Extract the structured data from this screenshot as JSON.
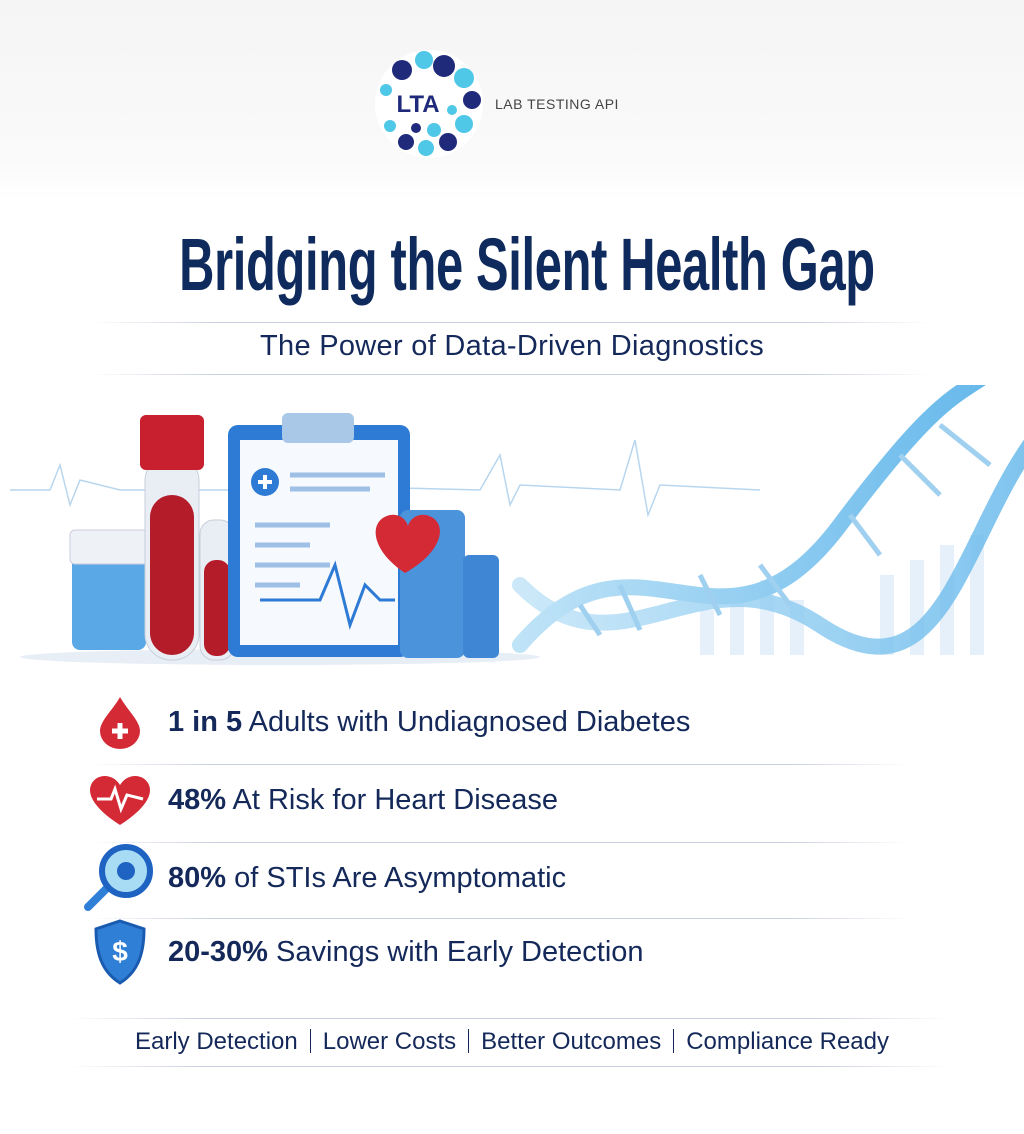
{
  "brand": {
    "logo_text": "LTA",
    "name": "LAB TESTING API"
  },
  "title": "Bridging the Silent Health Gap",
  "subtitle": "The Power of Data-Driven Diagnostics",
  "stats": [
    {
      "icon": "blood-drop-plus-icon",
      "highlight": "1 in 5",
      "text": "Adults with Undiagnosed Diabetes"
    },
    {
      "icon": "heart-pulse-icon",
      "highlight": "48%",
      "text": "At Risk for Heart Disease"
    },
    {
      "icon": "magnifier-virus-icon",
      "highlight": "80%",
      "text": "of STIs Are Asymptomatic"
    },
    {
      "icon": "shield-dollar-icon",
      "highlight": "20-30%",
      "text": "Savings with Early Detection"
    }
  ],
  "footer": [
    "Early Detection",
    "Lower Costs",
    "Better Outcomes",
    "Compliance Ready"
  ],
  "colors": {
    "navy": "#0f2a5c",
    "red": "#d42a35",
    "blue": "#2f7fd6",
    "light_blue": "#59c7e8"
  }
}
